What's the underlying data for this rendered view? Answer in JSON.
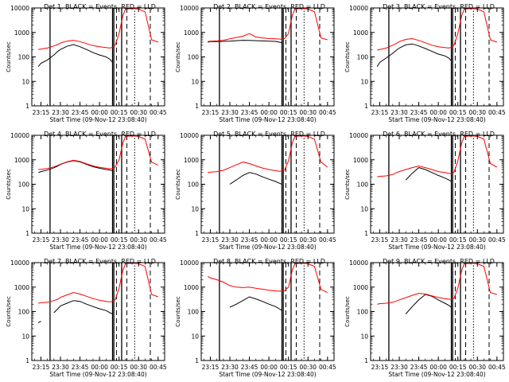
{
  "figure": {
    "xlabel": "Start Time (09-Nov-12 23:08:40)",
    "ylabel": "Counts/sec",
    "x_tick_labels": [
      "23:15",
      "23:30",
      "23:45",
      "00:00",
      "00:15",
      "00:30",
      "00:45"
    ],
    "y_tick_labels": [
      "1",
      "10",
      "100",
      "1000",
      "10000"
    ],
    "colors": {
      "events": "#000000",
      "lld": "#ff0000",
      "axes": "#000000",
      "background": "#ffffff"
    }
  },
  "chart_data": [
    {
      "type": "line",
      "title": "Det 1, BLACK = Events, RED = LLD",
      "xlabel": "Start Time (09-Nov-12 23:08:40)",
      "ylabel": "Counts/sec",
      "xlim": [
        "23:08",
        "00:50"
      ],
      "ylim": [
        1,
        10000
      ],
      "y_scale": "log",
      "x": [
        "23:13",
        "23:15",
        "23:20",
        "23:25",
        "23:28",
        "23:30",
        "23:35",
        "23:40",
        "23:45",
        "23:50",
        "23:55",
        "00:00",
        "00:05",
        "00:08",
        "00:10",
        "00:12",
        "00:15",
        "00:18",
        "00:20",
        "00:25",
        "00:30",
        "00:35",
        "00:40",
        "00:45"
      ],
      "series": [
        {
          "name": "Events",
          "values": [
            40,
            55,
            75,
            120,
            170,
            200,
            270,
            320,
            260,
            200,
            150,
            120,
            100,
            80,
            60,
            null,
            null,
            null,
            null,
            null,
            null,
            null,
            null,
            null
          ]
        },
        {
          "name": "LLD",
          "values": [
            200,
            210,
            230,
            280,
            320,
            370,
            440,
            480,
            420,
            350,
            290,
            260,
            240,
            230,
            250,
            300,
            900,
            5000,
            9000,
            9500,
            9000,
            7000,
            500,
            400
          ]
        }
      ],
      "vertical_lines": {
        "solid": [
          "23:22",
          "00:10",
          "00:11",
          "00:17"
        ],
        "dotted": [
          "00:27"
        ],
        "dashed": [
          "00:13",
          "00:21",
          "00:39"
        ]
      }
    },
    {
      "type": "line",
      "title": "Det 2, BLACK = Events, RED = LLD",
      "xlabel": "Start Time (09-Nov-12 23:08:40)",
      "ylabel": "Counts/sec",
      "xlim": [
        "23:08",
        "00:50"
      ],
      "ylim": [
        1,
        10000
      ],
      "y_scale": "log",
      "x": [
        "23:13",
        "23:15",
        "23:20",
        "23:25",
        "23:28",
        "23:30",
        "23:35",
        "23:40",
        "23:45",
        "23:50",
        "23:55",
        "00:00",
        "00:05",
        "00:08",
        "00:10",
        "00:12",
        "00:15",
        "00:18",
        "00:20",
        "00:25",
        "00:30",
        "00:35",
        "00:40",
        "00:45"
      ],
      "series": [
        {
          "name": "Events",
          "values": [
            400,
            420,
            420,
            430,
            440,
            440,
            460,
            480,
            470,
            460,
            450,
            440,
            430,
            400,
            380,
            null,
            null,
            null,
            null,
            null,
            null,
            null,
            null,
            null
          ]
        },
        {
          "name": "LLD",
          "values": [
            420,
            440,
            450,
            480,
            520,
            550,
            620,
            700,
            900,
            650,
            600,
            560,
            550,
            540,
            520,
            560,
            900,
            5000,
            9000,
            9500,
            9000,
            7000,
            600,
            500
          ]
        }
      ],
      "vertical_lines": {
        "solid": [
          "23:22",
          "00:10",
          "00:11",
          "00:17"
        ],
        "dotted": [
          "00:27"
        ],
        "dashed": [
          "00:13",
          "00:21",
          "00:39"
        ]
      }
    },
    {
      "type": "line",
      "title": "Det 3, BLACK = Events, RED = LLD",
      "xlabel": "Start Time (09-Nov-12 23:08:40)",
      "ylabel": "Counts/sec",
      "xlim": [
        "23:08",
        "00:50"
      ],
      "ylim": [
        1,
        10000
      ],
      "y_scale": "log",
      "x": [
        "23:13",
        "23:15",
        "23:20",
        "23:25",
        "23:28",
        "23:30",
        "23:35",
        "23:40",
        "23:45",
        "23:50",
        "23:55",
        "00:00",
        "00:05",
        "00:08",
        "00:10",
        "00:12",
        "00:15",
        "00:18",
        "00:20",
        "00:25",
        "00:30",
        "00:35",
        "00:40",
        "00:45"
      ],
      "series": [
        {
          "name": "Events",
          "values": [
            40,
            60,
            90,
            140,
            190,
            230,
            310,
            340,
            280,
            220,
            170,
            130,
            110,
            90,
            70,
            null,
            null,
            null,
            null,
            null,
            null,
            null,
            null,
            null
          ]
        },
        {
          "name": "LLD",
          "values": [
            190,
            200,
            230,
            300,
            360,
            420,
            520,
            560,
            470,
            380,
            300,
            260,
            240,
            230,
            250,
            300,
            900,
            5000,
            9000,
            9500,
            9000,
            7000,
            500,
            400
          ]
        }
      ],
      "vertical_lines": {
        "solid": [
          "23:22",
          "00:10",
          "00:11",
          "00:17"
        ],
        "dotted": [
          "00:27"
        ],
        "dashed": [
          "00:13",
          "00:21",
          "00:39"
        ]
      }
    },
    {
      "type": "line",
      "title": "Det 4, BLACK = Events, RED = LLD",
      "xlabel": "Start Time (09-Nov-12 23:08:40)",
      "ylabel": "Counts/sec",
      "xlim": [
        "23:08",
        "00:50"
      ],
      "ylim": [
        1,
        10000
      ],
      "y_scale": "log",
      "x": [
        "23:13",
        "23:15",
        "23:20",
        "23:25",
        "23:28",
        "23:30",
        "23:35",
        "23:40",
        "23:45",
        "23:50",
        "23:55",
        "00:00",
        "00:05",
        "00:08",
        "00:10",
        "00:12",
        "00:15",
        "00:18",
        "00:20",
        "00:25",
        "00:30",
        "00:35",
        "00:40",
        "00:45"
      ],
      "series": [
        {
          "name": "Events",
          "values": [
            300,
            330,
            380,
            470,
            560,
            640,
            800,
            920,
            820,
            650,
            520,
            450,
            400,
            380,
            360,
            null,
            null,
            null,
            null,
            null,
            null,
            null,
            null,
            null
          ]
        },
        {
          "name": "LLD",
          "values": [
            400,
            410,
            440,
            510,
            590,
            660,
            820,
            950,
            850,
            680,
            560,
            490,
            450,
            430,
            440,
            500,
            1000,
            5000,
            9000,
            9500,
            9000,
            7000,
            800,
            600
          ]
        }
      ],
      "vertical_lines": {
        "solid": [
          "23:22",
          "00:10",
          "00:11",
          "00:17"
        ],
        "dotted": [
          "00:27"
        ],
        "dashed": [
          "00:13",
          "00:21",
          "00:39"
        ]
      }
    },
    {
      "type": "line",
      "title": "Det 5, BLACK = Events, RED = LLD",
      "xlabel": "Start Time (09-Nov-12 23:08:40)",
      "ylabel": "Counts/sec",
      "xlim": [
        "23:08",
        "00:50"
      ],
      "ylim": [
        1,
        10000
      ],
      "y_scale": "log",
      "x": [
        "23:13",
        "23:15",
        "23:20",
        "23:25",
        "23:28",
        "23:30",
        "23:35",
        "23:40",
        "23:45",
        "23:50",
        "23:55",
        "00:00",
        "00:05",
        "00:08",
        "00:10",
        "00:12",
        "00:15",
        "00:18",
        "00:20",
        "00:25",
        "00:30",
        "00:35",
        "00:40",
        "00:45"
      ],
      "series": [
        {
          "name": "Events",
          "values": [
            null,
            null,
            null,
            null,
            null,
            100,
            150,
            230,
            300,
            260,
            200,
            160,
            130,
            110,
            100,
            null,
            null,
            null,
            null,
            null,
            null,
            null,
            null,
            null
          ]
        },
        {
          "name": "LLD",
          "values": [
            300,
            310,
            330,
            370,
            430,
            480,
            620,
            800,
            700,
            560,
            460,
            400,
            360,
            340,
            350,
            380,
            900,
            5000,
            9000,
            9500,
            9000,
            7000,
            800,
            500
          ]
        }
      ],
      "vertical_lines": {
        "solid": [
          "23:22",
          "00:10",
          "00:11",
          "00:17"
        ],
        "dotted": [
          "00:27"
        ],
        "dashed": [
          "00:13",
          "00:21",
          "00:39"
        ]
      }
    },
    {
      "type": "line",
      "title": "Det 6, BLACK = Events, RED = LLD",
      "xlabel": "Start Time (09-Nov-12 23:08:40)",
      "ylabel": "Counts/sec",
      "xlim": [
        "23:08",
        "00:50"
      ],
      "ylim": [
        1,
        10000
      ],
      "y_scale": "log",
      "x": [
        "23:13",
        "23:15",
        "23:20",
        "23:25",
        "23:28",
        "23:30",
        "23:35",
        "23:40",
        "23:45",
        "23:50",
        "23:55",
        "00:00",
        "00:05",
        "00:08",
        "00:10",
        "00:12",
        "00:15",
        "00:18",
        "00:20",
        "00:25",
        "00:30",
        "00:35",
        "00:40",
        "00:45"
      ],
      "series": [
        {
          "name": "Events",
          "values": [
            null,
            null,
            null,
            null,
            null,
            null,
            150,
            280,
            480,
            400,
            300,
            230,
            180,
            150,
            130,
            null,
            null,
            null,
            null,
            null,
            null,
            null,
            null,
            null
          ]
        },
        {
          "name": "LLD",
          "values": [
            200,
            210,
            220,
            250,
            300,
            330,
            400,
            480,
            550,
            480,
            400,
            330,
            300,
            280,
            270,
            300,
            900,
            5000,
            9000,
            9500,
            9000,
            7000,
            700,
            500
          ]
        }
      ],
      "vertical_lines": {
        "solid": [
          "23:22",
          "00:10",
          "00:11",
          "00:17"
        ],
        "dotted": [
          "00:27"
        ],
        "dashed": [
          "00:13",
          "00:21",
          "00:39"
        ]
      }
    },
    {
      "type": "line",
      "title": "Det 7, BLACK = Events, RED = LLD",
      "xlabel": "Start Time (09-Nov-12 23:08:40)",
      "ylabel": "Counts/sec",
      "xlim": [
        "23:08",
        "00:50"
      ],
      "ylim": [
        1,
        10000
      ],
      "y_scale": "log",
      "x": [
        "23:13",
        "23:15",
        "23:20",
        "23:25",
        "23:28",
        "23:30",
        "23:35",
        "23:40",
        "23:45",
        "23:50",
        "23:55",
        "00:00",
        "00:05",
        "00:08",
        "00:10",
        "00:12",
        "00:15",
        "00:18",
        "00:20",
        "00:25",
        "00:30",
        "00:35",
        "00:40",
        "00:45"
      ],
      "series": [
        {
          "name": "Events",
          "values": [
            35,
            40,
            null,
            90,
            130,
            170,
            220,
            280,
            260,
            200,
            160,
            130,
            110,
            90,
            80,
            null,
            null,
            null,
            null,
            null,
            null,
            null,
            null,
            null
          ]
        },
        {
          "name": "LLD",
          "values": [
            220,
            230,
            240,
            280,
            320,
            380,
            480,
            600,
            520,
            420,
            340,
            290,
            260,
            250,
            260,
            300,
            900,
            5000,
            9000,
            9500,
            9000,
            7000,
            500,
            400
          ]
        }
      ],
      "vertical_lines": {
        "solid": [
          "23:22",
          "00:10",
          "00:11",
          "00:17"
        ],
        "dotted": [
          "00:27"
        ],
        "dashed": [
          "00:13",
          "00:21",
          "00:39"
        ]
      }
    },
    {
      "type": "line",
      "title": "Det 8, BLACK = Events, RED = LLD",
      "xlabel": "Start Time (09-Nov-12 23:08:40)",
      "ylabel": "Counts/sec",
      "xlim": [
        "23:08",
        "00:50"
      ],
      "ylim": [
        1,
        10000
      ],
      "y_scale": "log",
      "x": [
        "23:13",
        "23:15",
        "23:20",
        "23:25",
        "23:28",
        "23:30",
        "23:35",
        "23:40",
        "23:45",
        "23:50",
        "23:55",
        "00:00",
        "00:05",
        "00:08",
        "00:10",
        "00:12",
        "00:15",
        "00:18",
        "00:20",
        "00:25",
        "00:30",
        "00:35",
        "00:40",
        "00:45"
      ],
      "series": [
        {
          "name": "Events",
          "values": [
            null,
            null,
            null,
            null,
            null,
            150,
            200,
            280,
            400,
            330,
            260,
            200,
            160,
            130,
            110,
            null,
            null,
            null,
            null,
            null,
            null,
            null,
            null,
            null
          ]
        },
        {
          "name": "LLD",
          "values": [
            2700,
            2400,
            2000,
            1600,
            1300,
            1150,
            1000,
            950,
            1000,
            900,
            820,
            750,
            700,
            680,
            690,
            700,
            1000,
            5000,
            9000,
            9500,
            9000,
            7000,
            800,
            600
          ]
        }
      ],
      "vertical_lines": {
        "solid": [
          "23:22",
          "00:10",
          "00:11",
          "00:17"
        ],
        "dotted": [
          "00:27"
        ],
        "dashed": [
          "00:13",
          "00:21",
          "00:39"
        ]
      }
    },
    {
      "type": "line",
      "title": "Det 9, BLACK = Events, RED = LLD",
      "xlabel": "Start Time (09-Nov-12 23:08:40)",
      "ylabel": "Counts/sec",
      "xlim": [
        "23:08",
        "00:50"
      ],
      "ylim": [
        1,
        10000
      ],
      "y_scale": "log",
      "x": [
        "23:13",
        "23:15",
        "23:20",
        "23:25",
        "23:28",
        "23:30",
        "23:35",
        "23:40",
        "23:45",
        "23:50",
        "23:55",
        "00:00",
        "00:05",
        "00:08",
        "00:10",
        "00:12",
        "00:15",
        "00:18",
        "00:20",
        "00:25",
        "00:30",
        "00:35",
        "00:40",
        "00:45"
      ],
      "series": [
        {
          "name": "Events",
          "values": [
            null,
            null,
            null,
            null,
            null,
            null,
            80,
            160,
            300,
            500,
            420,
            300,
            220,
            180,
            150,
            null,
            null,
            null,
            null,
            null,
            null,
            null,
            null,
            null
          ]
        },
        {
          "name": "LLD",
          "values": [
            200,
            210,
            220,
            240,
            270,
            300,
            370,
            460,
            560,
            520,
            440,
            380,
            340,
            320,
            320,
            350,
            900,
            5000,
            9000,
            9500,
            9000,
            7000,
            600,
            500
          ]
        }
      ],
      "vertical_lines": {
        "solid": [
          "23:22",
          "00:10",
          "00:11",
          "00:17"
        ],
        "dotted": [
          "00:27"
        ],
        "dashed": [
          "00:13",
          "00:21",
          "00:39"
        ]
      }
    }
  ]
}
